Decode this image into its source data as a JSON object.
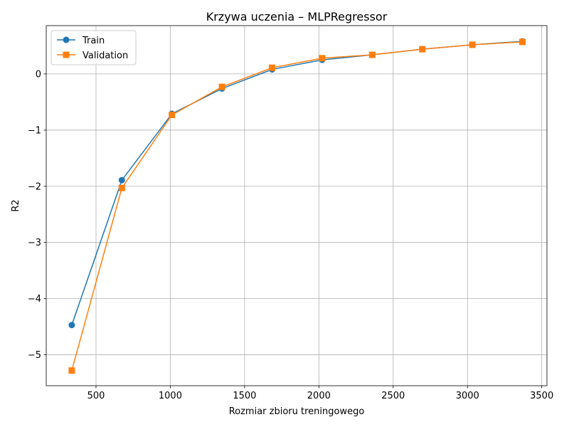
{
  "chart_data": {
    "type": "line",
    "title": "Krzywa uczenia – MLPRegressor",
    "xlabel": "Rozmiar zbioru treningowego",
    "ylabel": "R2",
    "xlim": [
      165,
      3535
    ],
    "ylim": [
      -5.55,
      0.86
    ],
    "xticks": [
      500,
      1000,
      1500,
      2000,
      2500,
      3000,
      3500
    ],
    "yticks": [
      -5,
      -4,
      -3,
      -2,
      -1,
      0
    ],
    "ytick_labels": [
      "−5",
      "−4",
      "−3",
      "−2",
      "−1",
      "0"
    ],
    "grid": true,
    "legend_position": "top-left",
    "x": [
      337,
      674,
      1011,
      1348,
      1685,
      2022,
      2359,
      2696,
      3033,
      3370
    ],
    "series": [
      {
        "name": "Train",
        "color": "#1f77b4",
        "marker": "circle",
        "values": [
          -4.47,
          -1.89,
          -0.71,
          -0.26,
          0.08,
          0.25,
          0.34,
          0.44,
          0.52,
          0.58
        ]
      },
      {
        "name": "Validation",
        "color": "#ff7f0e",
        "marker": "square",
        "values": [
          -5.28,
          -2.03,
          -0.73,
          -0.23,
          0.11,
          0.28,
          0.34,
          0.44,
          0.52,
          0.57
        ]
      }
    ]
  }
}
